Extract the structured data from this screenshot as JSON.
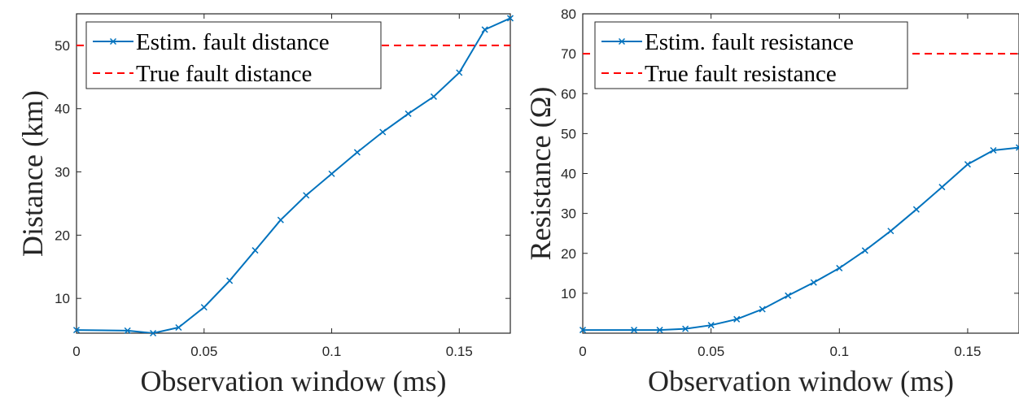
{
  "chart_data": [
    {
      "type": "line",
      "xlabel": "Observation window (ms)",
      "ylabel": "Distance (km)",
      "xlim": [
        0,
        0.17
      ],
      "ylim": [
        4.5,
        55
      ],
      "xticks": [
        0,
        0.05,
        0.1,
        0.15
      ],
      "xtick_labels": [
        "0",
        "0.05",
        "0.1",
        "0.15"
      ],
      "yticks": [
        10,
        20,
        30,
        40,
        50
      ],
      "ytick_labels": [
        "10",
        "20",
        "30",
        "40",
        "50"
      ],
      "grid": false,
      "legend_position": "top-left",
      "series": [
        {
          "name": "Estim. fault distance",
          "color": "#0072BD",
          "style": "solid",
          "marker": "x",
          "x": [
            0,
            0.02,
            0.03,
            0.04,
            0.05,
            0.06,
            0.07,
            0.08,
            0.09,
            0.1,
            0.11,
            0.12,
            0.13,
            0.14,
            0.15,
            0.16,
            0.17
          ],
          "y": [
            5.0,
            4.9,
            4.5,
            5.4,
            8.6,
            12.8,
            17.6,
            22.4,
            26.3,
            29.7,
            33.1,
            36.3,
            39.2,
            41.9,
            45.7,
            52.5,
            54.3
          ]
        },
        {
          "name": "True fault distance",
          "color": "#FF0000",
          "style": "dashed",
          "marker": "none",
          "x": [
            0,
            0.17
          ],
          "y": [
            50,
            50
          ]
        }
      ]
    },
    {
      "type": "line",
      "xlabel": "Observation window (ms)",
      "ylabel": "Resistance (Ω)",
      "xlim": [
        0,
        0.17
      ],
      "ylim": [
        0,
        80
      ],
      "xticks": [
        0,
        0.05,
        0.1,
        0.15
      ],
      "xtick_labels": [
        "0",
        "0.05",
        "0.1",
        "0.15"
      ],
      "yticks": [
        10,
        20,
        30,
        40,
        50,
        60,
        70,
        80
      ],
      "ytick_labels": [
        "10",
        "20",
        "30",
        "40",
        "50",
        "60",
        "70",
        "80"
      ],
      "grid": false,
      "legend_position": "top-left",
      "series": [
        {
          "name": "Estim. fault resistance",
          "color": "#0072BD",
          "style": "solid",
          "marker": "x",
          "x": [
            0,
            0.02,
            0.03,
            0.04,
            0.05,
            0.06,
            0.07,
            0.08,
            0.09,
            0.1,
            0.11,
            0.12,
            0.13,
            0.14,
            0.15,
            0.16,
            0.17
          ],
          "y": [
            0.8,
            0.8,
            0.8,
            1.1,
            2.0,
            3.5,
            6.0,
            9.4,
            12.7,
            16.3,
            20.7,
            25.6,
            31.0,
            36.6,
            42.3,
            45.8,
            46.5
          ]
        },
        {
          "name": "True fault resistance",
          "color": "#FF0000",
          "style": "dashed",
          "marker": "none",
          "x": [
            0,
            0.17
          ],
          "y": [
            70,
            70
          ]
        }
      ]
    }
  ]
}
